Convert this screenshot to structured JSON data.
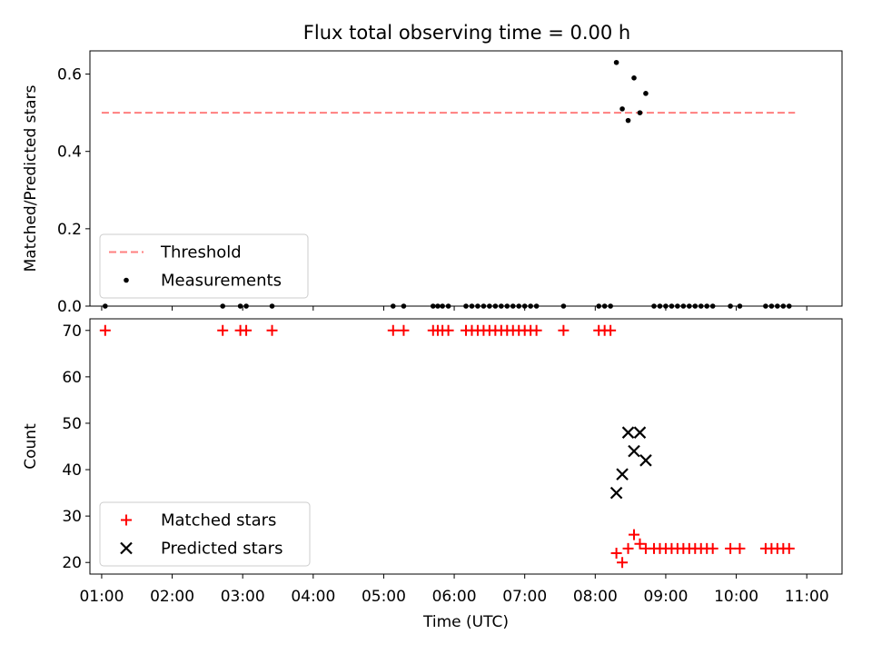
{
  "chart_data": [
    {
      "type": "scatter",
      "title": "Flux total observing time = 0.00 h",
      "xlabel": "",
      "ylabel": "Matched/Predicted stars",
      "xlim": [
        "00:50",
        "11:30"
      ],
      "ylim": [
        0.0,
        0.66
      ],
      "yticks": [
        "0.0",
        "0.2",
        "0.4",
        "0.6"
      ],
      "threshold": {
        "name": "Threshold",
        "value": 0.5,
        "x_range": [
          "01:00",
          "10:50"
        ],
        "color": "#ff7f7f",
        "style": "dashed"
      },
      "legend": {
        "position": "lower left",
        "entries": [
          "Threshold",
          "Measurements"
        ]
      },
      "series": [
        {
          "name": "Measurements",
          "color": "#000000",
          "marker": "dot",
          "points": [
            [
              "01:03",
              0.0
            ],
            [
              "02:43",
              0.0
            ],
            [
              "02:58",
              0.0
            ],
            [
              "03:03",
              0.0
            ],
            [
              "03:25",
              0.0
            ],
            [
              "05:08",
              0.0
            ],
            [
              "05:17",
              0.0
            ],
            [
              "05:42",
              0.0
            ],
            [
              "05:46",
              0.0
            ],
            [
              "05:50",
              0.0
            ],
            [
              "05:55",
              0.0
            ],
            [
              "06:10",
              0.0
            ],
            [
              "06:15",
              0.0
            ],
            [
              "06:20",
              0.0
            ],
            [
              "06:25",
              0.0
            ],
            [
              "06:30",
              0.0
            ],
            [
              "06:35",
              0.0
            ],
            [
              "06:40",
              0.0
            ],
            [
              "06:45",
              0.0
            ],
            [
              "06:50",
              0.0
            ],
            [
              "06:55",
              0.0
            ],
            [
              "07:00",
              0.0
            ],
            [
              "07:05",
              0.0
            ],
            [
              "07:10",
              0.0
            ],
            [
              "07:33",
              0.0
            ],
            [
              "08:03",
              0.0
            ],
            [
              "08:08",
              0.0
            ],
            [
              "08:13",
              0.0
            ],
            [
              "08:18",
              0.63
            ],
            [
              "08:23",
              0.51
            ],
            [
              "08:28",
              0.48
            ],
            [
              "08:33",
              0.59
            ],
            [
              "08:38",
              0.5
            ],
            [
              "08:43",
              0.55
            ],
            [
              "08:50",
              0.0
            ],
            [
              "08:55",
              0.0
            ],
            [
              "09:00",
              0.0
            ],
            [
              "09:05",
              0.0
            ],
            [
              "09:10",
              0.0
            ],
            [
              "09:15",
              0.0
            ],
            [
              "09:20",
              0.0
            ],
            [
              "09:25",
              0.0
            ],
            [
              "09:30",
              0.0
            ],
            [
              "09:35",
              0.0
            ],
            [
              "09:40",
              0.0
            ],
            [
              "09:55",
              0.0
            ],
            [
              "10:03",
              0.0
            ],
            [
              "10:25",
              0.0
            ],
            [
              "10:30",
              0.0
            ],
            [
              "10:35",
              0.0
            ],
            [
              "10:40",
              0.0
            ],
            [
              "10:45",
              0.0
            ]
          ]
        }
      ]
    },
    {
      "type": "scatter",
      "title": "",
      "xlabel": "Time (UTC)",
      "ylabel": "Count",
      "xlim": [
        "00:50",
        "11:30"
      ],
      "ylim": [
        17.5,
        72.5
      ],
      "xticks": [
        "01:00",
        "02:00",
        "03:00",
        "04:00",
        "05:00",
        "06:00",
        "07:00",
        "08:00",
        "09:00",
        "10:00",
        "11:00"
      ],
      "yticks": [
        "20",
        "30",
        "40",
        "50",
        "60",
        "70"
      ],
      "legend": {
        "position": "lower left",
        "entries": [
          "Matched stars",
          "Predicted stars"
        ]
      },
      "series": [
        {
          "name": "Matched stars",
          "color": "#ff0000",
          "marker": "plus",
          "points": [
            [
              "01:03",
              70
            ],
            [
              "02:43",
              70
            ],
            [
              "02:58",
              70
            ],
            [
              "03:03",
              70
            ],
            [
              "03:25",
              70
            ],
            [
              "05:08",
              70
            ],
            [
              "05:17",
              70
            ],
            [
              "05:42",
              70
            ],
            [
              "05:46",
              70
            ],
            [
              "05:50",
              70
            ],
            [
              "05:55",
              70
            ],
            [
              "06:10",
              70
            ],
            [
              "06:15",
              70
            ],
            [
              "06:20",
              70
            ],
            [
              "06:25",
              70
            ],
            [
              "06:30",
              70
            ],
            [
              "06:35",
              70
            ],
            [
              "06:40",
              70
            ],
            [
              "06:45",
              70
            ],
            [
              "06:50",
              70
            ],
            [
              "06:55",
              70
            ],
            [
              "07:00",
              70
            ],
            [
              "07:05",
              70
            ],
            [
              "07:10",
              70
            ],
            [
              "07:33",
              70
            ],
            [
              "08:03",
              70
            ],
            [
              "08:08",
              70
            ],
            [
              "08:13",
              70
            ],
            [
              "08:18",
              22
            ],
            [
              "08:23",
              20
            ],
            [
              "08:28",
              23
            ],
            [
              "08:33",
              26
            ],
            [
              "08:38",
              24
            ],
            [
              "08:43",
              23
            ],
            [
              "08:50",
              23
            ],
            [
              "08:55",
              23
            ],
            [
              "09:00",
              23
            ],
            [
              "09:05",
              23
            ],
            [
              "09:10",
              23
            ],
            [
              "09:15",
              23
            ],
            [
              "09:20",
              23
            ],
            [
              "09:25",
              23
            ],
            [
              "09:30",
              23
            ],
            [
              "09:35",
              23
            ],
            [
              "09:40",
              23
            ],
            [
              "09:55",
              23
            ],
            [
              "10:03",
              23
            ],
            [
              "10:25",
              23
            ],
            [
              "10:30",
              23
            ],
            [
              "10:35",
              23
            ],
            [
              "10:40",
              23
            ],
            [
              "10:45",
              23
            ]
          ]
        },
        {
          "name": "Predicted stars",
          "color": "#000000",
          "marker": "x",
          "points": [
            [
              "08:18",
              35
            ],
            [
              "08:23",
              39
            ],
            [
              "08:28",
              48
            ],
            [
              "08:33",
              44
            ],
            [
              "08:38",
              48
            ],
            [
              "08:43",
              42
            ]
          ]
        }
      ]
    }
  ]
}
